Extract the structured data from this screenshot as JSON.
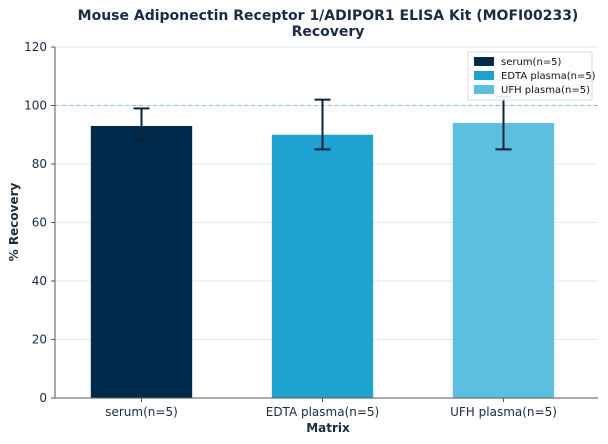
{
  "chart_data": {
    "type": "bar",
    "title": "Mouse Adiponectin Receptor 1/ADIPOR1 ELISA Kit (MOFI00233)",
    "subtitle": "Recovery",
    "xlabel": "Matrix",
    "ylabel": "% Recovery",
    "ylim": [
      0,
      120
    ],
    "yticks": [
      "0",
      "20",
      "40",
      "60",
      "80",
      "100",
      "120"
    ],
    "reference_line": 100,
    "grid": true,
    "legend_position": "top-right",
    "categories": [
      "serum(n=5)",
      "EDTA plasma(n=5)",
      "UFH plasma(n=5)"
    ],
    "values": [
      93,
      90,
      94
    ],
    "error_low": [
      88,
      85,
      85
    ],
    "error_high": [
      99,
      102,
      103
    ],
    "colors": [
      "#002a4b",
      "#1fa3d1",
      "#5dbfe0"
    ],
    "legend": [
      "serum(n=5)",
      "EDTA plasma(n=5)",
      "UFH plasma(n=5)"
    ]
  }
}
